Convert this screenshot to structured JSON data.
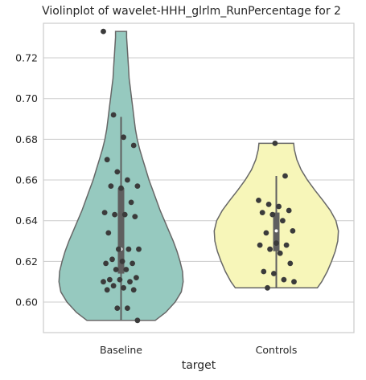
{
  "chart_data": {
    "type": "violin",
    "title": "Violinplot of wavelet-HHH_glrlm_RunPercentage for 2",
    "xlabel": "target",
    "ylabel": "",
    "ylim": [
      0.585,
      0.737
    ],
    "yticks": [
      "0.60",
      "0.62",
      "0.64",
      "0.66",
      "0.68",
      "0.70",
      "0.72"
    ],
    "grid": true,
    "categories": [
      "Baseline",
      "Controls"
    ],
    "colors": [
      "#96c9bf",
      "#f7f6b9"
    ],
    "groups": [
      {
        "category": "Baseline",
        "min": 0.591,
        "max": 0.733,
        "q1": 0.614,
        "median": 0.626,
        "q3": 0.656,
        "whisker_low": 0.591,
        "whisker_high": 0.691,
        "density": [
          [
            0.591,
            0.55
          ],
          [
            0.595,
            0.72
          ],
          [
            0.6,
            0.87
          ],
          [
            0.605,
            0.97
          ],
          [
            0.61,
            1.0
          ],
          [
            0.615,
            0.99
          ],
          [
            0.62,
            0.95
          ],
          [
            0.625,
            0.9
          ],
          [
            0.63,
            0.84
          ],
          [
            0.635,
            0.77
          ],
          [
            0.64,
            0.7
          ],
          [
            0.645,
            0.63
          ],
          [
            0.65,
            0.57
          ],
          [
            0.655,
            0.51
          ],
          [
            0.66,
            0.45
          ],
          [
            0.665,
            0.4
          ],
          [
            0.67,
            0.35
          ],
          [
            0.675,
            0.3
          ],
          [
            0.68,
            0.26
          ],
          [
            0.685,
            0.23
          ],
          [
            0.69,
            0.21
          ],
          [
            0.695,
            0.19
          ],
          [
            0.7,
            0.17
          ],
          [
            0.705,
            0.15
          ],
          [
            0.71,
            0.13
          ],
          [
            0.715,
            0.12
          ],
          [
            0.72,
            0.11
          ],
          [
            0.725,
            0.1
          ],
          [
            0.73,
            0.09
          ],
          [
            0.733,
            0.09
          ]
        ],
        "points": [
          0.733,
          0.692,
          0.681,
          0.677,
          0.67,
          0.664,
          0.66,
          0.657,
          0.657,
          0.656,
          0.649,
          0.644,
          0.643,
          0.643,
          0.642,
          0.634,
          0.626,
          0.626,
          0.626,
          0.621,
          0.62,
          0.619,
          0.619,
          0.616,
          0.616,
          0.612,
          0.611,
          0.611,
          0.61,
          0.61,
          0.608,
          0.607,
          0.606,
          0.606,
          0.597,
          0.597,
          0.591
        ]
      },
      {
        "category": "Controls",
        "min": 0.607,
        "max": 0.678,
        "q1": 0.625,
        "median": 0.635,
        "q3": 0.644,
        "whisker_low": 0.607,
        "whisker_high": 0.662,
        "density": [
          [
            0.607,
            0.66
          ],
          [
            0.61,
            0.73
          ],
          [
            0.615,
            0.82
          ],
          [
            0.62,
            0.89
          ],
          [
            0.625,
            0.95
          ],
          [
            0.63,
            0.99
          ],
          [
            0.635,
            1.0
          ],
          [
            0.64,
            0.96
          ],
          [
            0.645,
            0.87
          ],
          [
            0.65,
            0.75
          ],
          [
            0.655,
            0.62
          ],
          [
            0.66,
            0.5
          ],
          [
            0.665,
            0.4
          ],
          [
            0.67,
            0.33
          ],
          [
            0.675,
            0.29
          ],
          [
            0.678,
            0.28
          ]
        ],
        "points": [
          0.678,
          0.662,
          0.65,
          0.648,
          0.647,
          0.645,
          0.644,
          0.643,
          0.64,
          0.635,
          0.634,
          0.629,
          0.628,
          0.628,
          0.626,
          0.624,
          0.619,
          0.615,
          0.614,
          0.611,
          0.61,
          0.607
        ]
      }
    ]
  }
}
